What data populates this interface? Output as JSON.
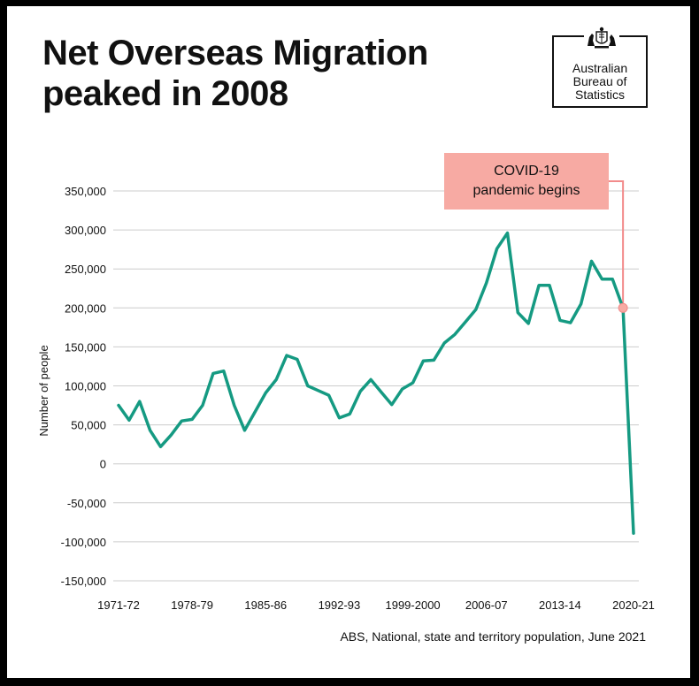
{
  "title_lines": [
    "Net Overseas Migration",
    "peaked in 2008"
  ],
  "logo": {
    "lines": [
      "Australian",
      "Bureau of",
      "Statistics"
    ],
    "crest_label": "AUSTRALIA"
  },
  "source": "ABS, National, state and territory population, June 2021",
  "colors": {
    "line": "#159a82",
    "annotation_bg": "#f7aaa3",
    "annotation_line": "#f28b8b",
    "grid": "#cccccc"
  },
  "chart_data": {
    "type": "line",
    "title": "Net Overseas Migration peaked in 2008",
    "ylabel": "Number of people",
    "xlabel": "",
    "ylim": [
      -150000,
      350000
    ],
    "yticks": [
      350000,
      300000,
      250000,
      200000,
      150000,
      100000,
      50000,
      0,
      -50000,
      -100000,
      -150000
    ],
    "ytick_labels": [
      "350,000",
      "300,000",
      "250,000",
      "200,000",
      "150,000",
      "100,000",
      "50,000",
      "0",
      "-50,000",
      "-100,000",
      "-150,000"
    ],
    "xtick_labels": [
      {
        "label": "1971-72",
        "index": 0
      },
      {
        "label": "1978-79",
        "index": 7
      },
      {
        "label": "1985-86",
        "index": 14
      },
      {
        "label": "1992-93",
        "index": 21
      },
      {
        "label": "1999-2000",
        "index": 28
      },
      {
        "label": "2006-07",
        "index": 35
      },
      {
        "label": "2013-14",
        "index": 42
      },
      {
        "label": "2020-21",
        "index": 49
      }
    ],
    "series": [
      {
        "name": "Net Overseas Migration",
        "start_year": "1971-72",
        "values": [
          75000,
          56000,
          80000,
          43000,
          22000,
          37000,
          55000,
          57000,
          75000,
          116000,
          119000,
          75000,
          43000,
          67000,
          91000,
          108000,
          139000,
          134000,
          100000,
          94000,
          88000,
          59000,
          64000,
          93000,
          108000,
          92000,
          76000,
          96000,
          104000,
          132000,
          133000,
          155000,
          166000,
          182000,
          198000,
          232000,
          276000,
          296000,
          194000,
          180000,
          229000,
          229000,
          184000,
          181000,
          205000,
          260000,
          237000,
          237000,
          200000,
          -89000
        ]
      }
    ],
    "annotations": [
      {
        "text_lines": [
          "COVID-19",
          "pandemic begins"
        ],
        "point_index": 48,
        "value": 200000
      }
    ]
  }
}
